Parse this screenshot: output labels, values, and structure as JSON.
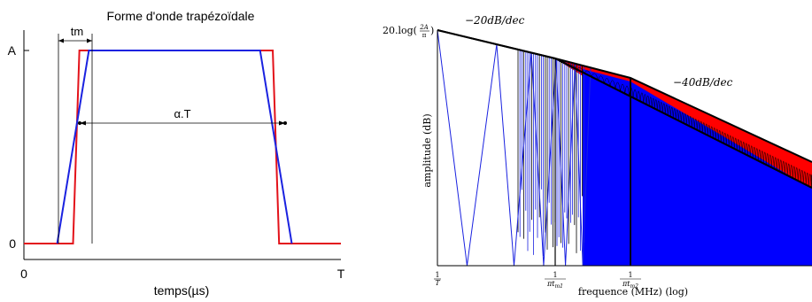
{
  "colors": {
    "red": "#e3121a",
    "blue": "#1a22e0",
    "black": "#000000",
    "fill_red": "#ff0000",
    "fill_blue": "#0000ff"
  },
  "chart_data": [
    {
      "type": "line",
      "title": "Forme d'onde trapézoïdale",
      "xlabel": "temps(µs)",
      "ylabel": "",
      "x_ticks": [
        "0",
        "T"
      ],
      "y_ticks": [
        "0",
        "A"
      ],
      "annotations": [
        "tm",
        "α.T"
      ],
      "xlim": [
        0,
        1
      ],
      "ylim": [
        0,
        1
      ],
      "series": [
        {
          "color": "red",
          "points": [
            [
              0,
              0
            ],
            [
              0.155,
              0
            ],
            [
              0.175,
              1
            ],
            [
              0.785,
              1
            ],
            [
              0.805,
              0
            ],
            [
              1,
              0
            ]
          ]
        },
        {
          "color": "blue",
          "points": [
            [
              0.105,
              0
            ],
            [
              0.205,
              1
            ],
            [
              0.745,
              1
            ],
            [
              0.845,
              0
            ]
          ]
        }
      ]
    },
    {
      "type": "area",
      "title": "",
      "xlabel": "frequence (MHz) (log)",
      "ylabel": "amplitude (dB)",
      "x_scale": "log",
      "x_ticks": [
        "1/T",
        "1/πt_m1",
        "1/πt_m2"
      ],
      "y_ticks": [
        "20.log(2A/π)"
      ],
      "annotations": [
        "−20dB/dec",
        "−40dB/dec"
      ],
      "series": [
        {
          "color": "red",
          "style": "filled envelope"
        },
        {
          "color": "blue",
          "style": "filled spectrum"
        },
        {
          "color": "black",
          "style": "asymptotes"
        }
      ]
    }
  ]
}
